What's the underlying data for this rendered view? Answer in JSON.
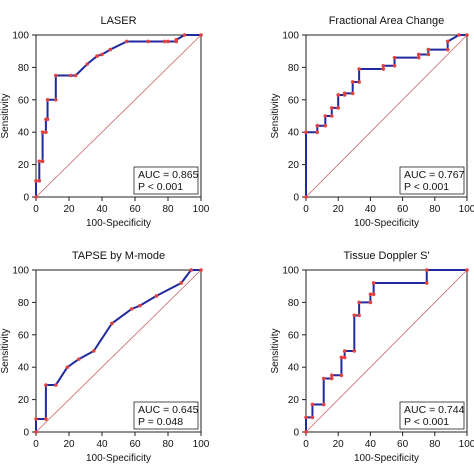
{
  "chart_data": [
    {
      "type": "line",
      "title": "LASER",
      "xlabel": "100-Specificity",
      "ylabel": "Sensitivity",
      "xlim": [
        0,
        100
      ],
      "ylim": [
        0,
        100
      ],
      "x_ticks": [
        "0",
        "20",
        "40",
        "60",
        "80",
        "100"
      ],
      "y_ticks": [
        "0",
        "20",
        "40",
        "60",
        "80",
        "100"
      ],
      "series": [
        {
          "x": [
            0,
            0,
            2,
            2,
            4,
            4,
            6,
            6,
            7,
            7,
            12,
            12,
            21,
            24,
            31,
            37,
            40,
            45,
            55,
            68,
            78,
            80,
            85,
            85,
            90,
            100
          ],
          "y": [
            0,
            10,
            10,
            22,
            22,
            40,
            40,
            48,
            48,
            60,
            60,
            75,
            75,
            75,
            82,
            87,
            88,
            91,
            96,
            96,
            96,
            96,
            96,
            97,
            100,
            100
          ]
        }
      ],
      "reference_line": true,
      "annotation": {
        "auc": "AUC = 0.865",
        "p": "P < 0.001"
      }
    },
    {
      "type": "line",
      "title": "Fractional Area Change",
      "xlabel": "100-Specificity",
      "ylabel": "Sensitivity",
      "xlim": [
        0,
        100
      ],
      "ylim": [
        0,
        100
      ],
      "x_ticks": [
        "0",
        "20",
        "40",
        "60",
        "80",
        "100"
      ],
      "y_ticks": [
        "0",
        "20",
        "40",
        "60",
        "80",
        "100"
      ],
      "series": [
        {
          "x": [
            0,
            0,
            7,
            7,
            12,
            12,
            16,
            16,
            20,
            20,
            24,
            24,
            29,
            29,
            33,
            33,
            48,
            48,
            55,
            55,
            70,
            70,
            76,
            76,
            88,
            88,
            95,
            100
          ],
          "y": [
            0,
            40,
            40,
            44,
            44,
            50,
            50,
            55,
            55,
            63,
            63,
            64,
            64,
            71,
            71,
            79,
            79,
            81,
            81,
            86,
            86,
            88,
            88,
            91,
            91,
            96,
            100,
            100
          ]
        }
      ],
      "reference_line": true,
      "annotation": {
        "auc": "AUC = 0.767",
        "p": "P < 0.001"
      }
    },
    {
      "type": "line",
      "title": "TAPSE by M-mode",
      "xlabel": "100-Specificity",
      "ylabel": "Sensitivity",
      "xlim": [
        0,
        100
      ],
      "ylim": [
        0,
        100
      ],
      "x_ticks": [
        "0",
        "20",
        "40",
        "60",
        "80",
        "100"
      ],
      "y_ticks": [
        "0",
        "20",
        "40",
        "60",
        "80",
        "100"
      ],
      "series": [
        {
          "x": [
            0,
            0,
            6,
            6,
            12,
            19,
            26,
            35,
            46,
            58,
            63,
            73,
            88,
            94,
            100
          ],
          "y": [
            0,
            8,
            8,
            29,
            29,
            40,
            45,
            50,
            67,
            76,
            78,
            84,
            92,
            100,
            100
          ]
        }
      ],
      "reference_line": true,
      "annotation": {
        "auc": "AUC = 0.645",
        "p": "P = 0.048"
      }
    },
    {
      "type": "line",
      "title": "Tissue Doppler S'",
      "xlabel": "100-Specificity",
      "ylabel": "Sensitivity",
      "xlim": [
        0,
        100
      ],
      "ylim": [
        0,
        100
      ],
      "x_ticks": [
        "0",
        "20",
        "40",
        "60",
        "80",
        "100"
      ],
      "y_ticks": [
        "0",
        "20",
        "40",
        "60",
        "80",
        "100"
      ],
      "series": [
        {
          "x": [
            0,
            0,
            4,
            4,
            11,
            11,
            16,
            16,
            22,
            22,
            24,
            24,
            30,
            30,
            33,
            33,
            40,
            40,
            42,
            42,
            75,
            75,
            100
          ],
          "y": [
            0,
            9,
            9,
            17,
            17,
            33,
            33,
            35,
            35,
            46,
            46,
            50,
            50,
            72,
            72,
            80,
            80,
            85,
            85,
            92,
            92,
            100,
            100
          ]
        }
      ],
      "reference_line": true,
      "annotation": {
        "auc": "AUC = 0.744",
        "p": "P < 0.001"
      }
    }
  ]
}
